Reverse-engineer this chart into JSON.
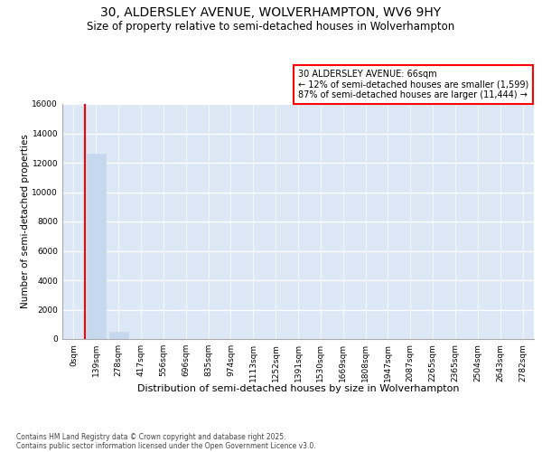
{
  "title": "30, ALDERSLEY AVENUE, WOLVERHAMPTON, WV6 9HY",
  "subtitle": "Size of property relative to semi-detached houses in Wolverhampton",
  "xlabel": "Distribution of semi-detached houses by size in Wolverhampton",
  "ylabel": "Number of semi-detached properties",
  "property_label": "30 ALDERSLEY AVENUE: 66sqm",
  "annotation_line1": "← 12% of semi-detached houses are smaller (1,599)",
  "annotation_line2": "87% of semi-detached houses are larger (11,444) →",
  "bar_values": [
    0,
    12600,
    500,
    30,
    10,
    5,
    3,
    2,
    2,
    1,
    1,
    1,
    1,
    1,
    1,
    1,
    1,
    1,
    1,
    1,
    1
  ],
  "bin_labels": [
    "0sqm",
    "139sqm",
    "278sqm",
    "417sqm",
    "556sqm",
    "696sqm",
    "835sqm",
    "974sqm",
    "1113sqm",
    "1252sqm",
    "1391sqm",
    "1530sqm",
    "1669sqm",
    "1808sqm",
    "1947sqm",
    "2087sqm",
    "2265sqm",
    "2365sqm",
    "2504sqm",
    "2643sqm",
    "2782sqm"
  ],
  "bar_color": "#c5d8ed",
  "red_line_x": 0.5,
  "ylim": [
    0,
    16000
  ],
  "yticks": [
    0,
    2000,
    4000,
    6000,
    8000,
    10000,
    12000,
    14000,
    16000
  ],
  "annotation_box_color": "#ff0000",
  "background_color": "#ffffff",
  "plot_bg_color": "#dce8f5",
  "grid_color": "#c0d0e0",
  "footer_line1": "Contains HM Land Registry data © Crown copyright and database right 2025.",
  "footer_line2": "Contains public sector information licensed under the Open Government Licence v3.0.",
  "title_fontsize": 10,
  "subtitle_fontsize": 8.5,
  "tick_fontsize": 6.5,
  "ylabel_fontsize": 7.5,
  "xlabel_fontsize": 8
}
